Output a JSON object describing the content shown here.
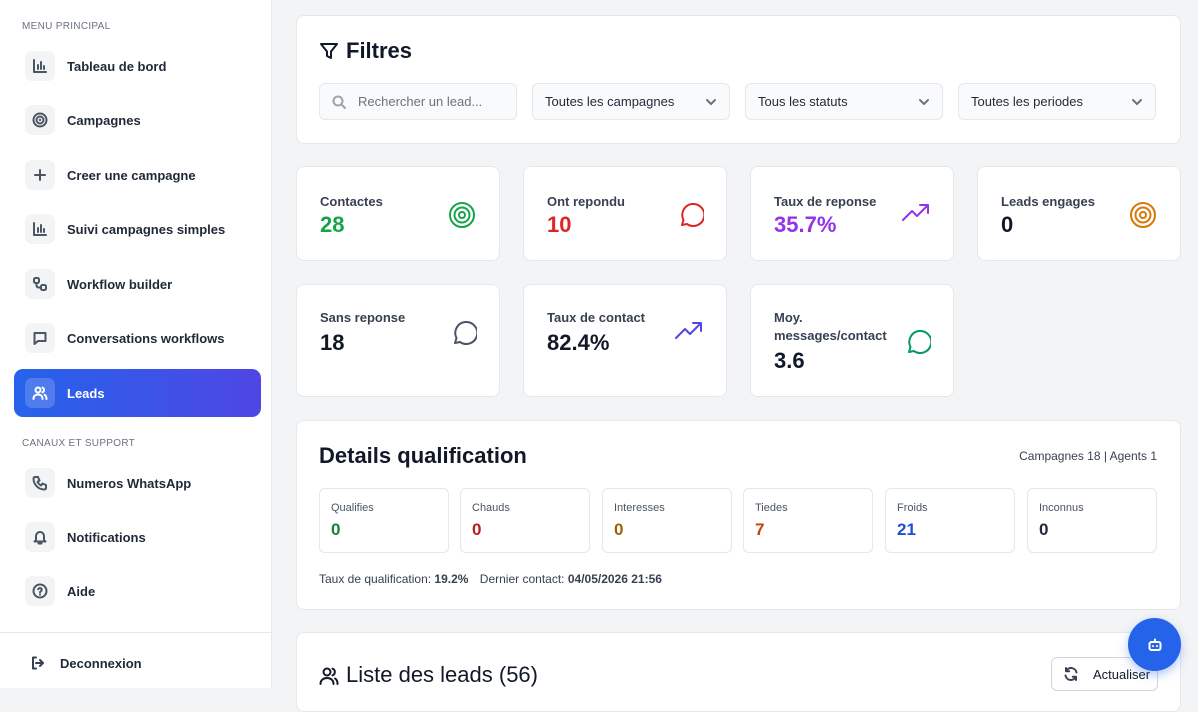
{
  "sidebar": {
    "sections": [
      {
        "title": "MENU PRINCIPAL",
        "items": [
          "Tableau de bord",
          "Campagnes",
          "Creer une campagne",
          "Suivi campagnes simples",
          "Workflow builder",
          "Conversations workflows",
          "Leads"
        ]
      },
      {
        "title": "CANAUX ET SUPPORT",
        "items": [
          "Numeros WhatsApp",
          "Notifications",
          "Aide"
        ]
      }
    ],
    "logout": "Deconnexion"
  },
  "filters": {
    "title": "Filtres",
    "search_placeholder": "Rechercher un lead...",
    "selects": [
      "Toutes les campagnes",
      "Tous les statuts",
      "Toutes les periodes"
    ]
  },
  "stats": [
    {
      "label": "Contactes",
      "value": "28"
    },
    {
      "label": "Ont repondu",
      "value": "10"
    },
    {
      "label": "Taux de reponse",
      "value": "35.7%"
    },
    {
      "label": "Leads engages",
      "value": "0"
    },
    {
      "label": "Sans reponse",
      "value": "18"
    },
    {
      "label": "Taux de contact",
      "value": "82.4%"
    },
    {
      "label": "Moy. messages/contact",
      "value": "3.6"
    }
  ],
  "qualification": {
    "title": "Details qualification",
    "summary": "Campagnes 18 | Agents 1",
    "boxes": [
      {
        "label": "Qualifies",
        "value": "0"
      },
      {
        "label": "Chauds",
        "value": "0"
      },
      {
        "label": "Interesses",
        "value": "0"
      },
      {
        "label": "Tiedes",
        "value": "7"
      },
      {
        "label": "Froids",
        "value": "21"
      },
      {
        "label": "Inconnus",
        "value": "0"
      }
    ],
    "rate_label": "Taux de qualification:",
    "rate": "19.2%",
    "last_contact_label": "Dernier contact:",
    "last_contact": "04/05/2026 21:56"
  },
  "leads_list": {
    "title": "Liste des leads (56)",
    "refresh": "Actualiser"
  }
}
